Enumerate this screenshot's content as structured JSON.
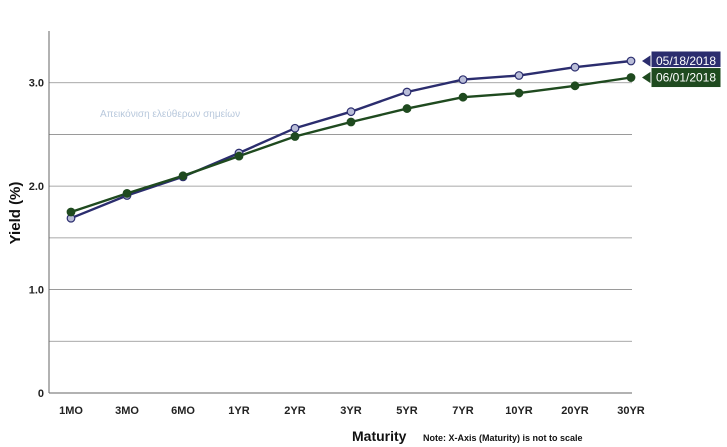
{
  "chart_data": {
    "type": "line",
    "categories": [
      "1MO",
      "3MO",
      "6MO",
      "1YR",
      "2YR",
      "3YR",
      "5YR",
      "7YR",
      "10YR",
      "20YR",
      "30YR"
    ],
    "series": [
      {
        "name": "05/18/2018",
        "color": "#2b2d6e",
        "marker_fill": "#b9bdd8",
        "values": [
          1.69,
          1.91,
          2.09,
          2.32,
          2.56,
          2.72,
          2.91,
          3.03,
          3.07,
          3.15,
          3.21
        ]
      },
      {
        "name": "06/01/2018",
        "color": "#1f4a1f",
        "marker_fill": "#1f4a1f",
        "values": [
          1.75,
          1.93,
          2.1,
          2.29,
          2.48,
          2.62,
          2.75,
          2.86,
          2.9,
          2.97,
          3.05
        ]
      }
    ],
    "ylabel": "Yield (%)",
    "xlabel": "Maturity",
    "note": "Note: X-Axis (Maturity) is not to scale",
    "ylim": [
      0,
      3.5
    ],
    "y_ticks": [
      {
        "value": 0,
        "label": "0"
      },
      {
        "value": 1,
        "label": "1.0"
      },
      {
        "value": 2,
        "label": "2.0"
      },
      {
        "value": 3,
        "label": "3.0"
      }
    ],
    "gridlines": [
      0.5,
      1.0,
      1.5,
      2.0,
      2.5,
      3.0
    ],
    "grid": true,
    "legend_placement": "right-end-flags",
    "watermark": "Απεικόνιση ελεύθερων σημείων"
  }
}
